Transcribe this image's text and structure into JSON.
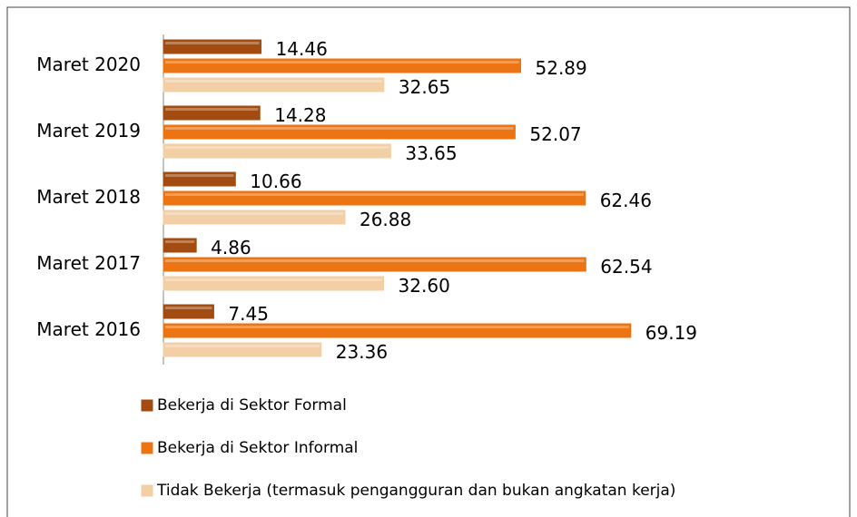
{
  "chart_data": {
    "type": "barh",
    "categories": [
      "Maret 2020",
      "Maret 2019",
      "Maret 2018",
      "Maret 2017",
      "Maret 2016"
    ],
    "series": [
      {
        "name": "Bekerja di Sektor Formal",
        "color": "#a34c12",
        "values": [
          14.46,
          14.28,
          10.66,
          4.86,
          7.45
        ],
        "value_labels": [
          "14.46",
          "14.28",
          "10.66",
          "4.86",
          "7.45"
        ]
      },
      {
        "name": "Bekerja di Sektor Informal",
        "color": "#ec7412",
        "values": [
          52.89,
          52.07,
          62.46,
          62.54,
          69.19
        ],
        "value_labels": [
          "52.89",
          "52.07",
          "62.46",
          "62.54",
          "69.19"
        ]
      },
      {
        "name": "Tidak Bekerja (termasuk pengangguran dan bukan angkatan kerja)",
        "color": "#f3cfa6",
        "values": [
          32.65,
          33.65,
          26.88,
          32.6,
          23.36
        ],
        "value_labels": [
          "32.65",
          "33.65",
          "26.88",
          "32.60",
          "23.36"
        ]
      }
    ],
    "legend": "bottom-left"
  }
}
